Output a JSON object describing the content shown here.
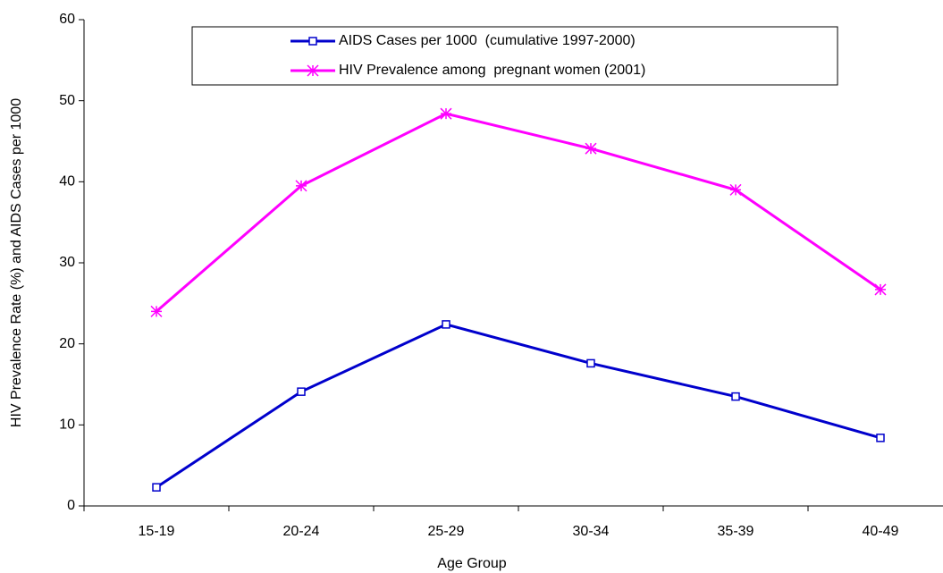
{
  "chart_data": {
    "type": "line",
    "x_label": "Age Group",
    "y_label": "HIV Prevalence Rate (%) and AIDS Cases per 1000",
    "categories": [
      "15-19",
      "20-24",
      "25-29",
      "30-34",
      "35-39",
      "40-49"
    ],
    "series": [
      {
        "name": "AIDS Cases per 1000  (cumulative 1997-2000)",
        "color": "#0000cc",
        "marker": "square",
        "values": [
          2.3,
          14.1,
          22.4,
          17.6,
          13.5,
          8.4
        ]
      },
      {
        "name": "HIV Prevalence among  pregnant women (2001)",
        "color": "#ff00ff",
        "marker": "asterisk",
        "values": [
          24.0,
          39.5,
          48.4,
          44.1,
          39.0,
          26.7
        ]
      }
    ],
    "ylim": [
      0,
      60
    ],
    "yticks": [
      0,
      10,
      20,
      30,
      40,
      50,
      60
    ],
    "grid": false
  }
}
